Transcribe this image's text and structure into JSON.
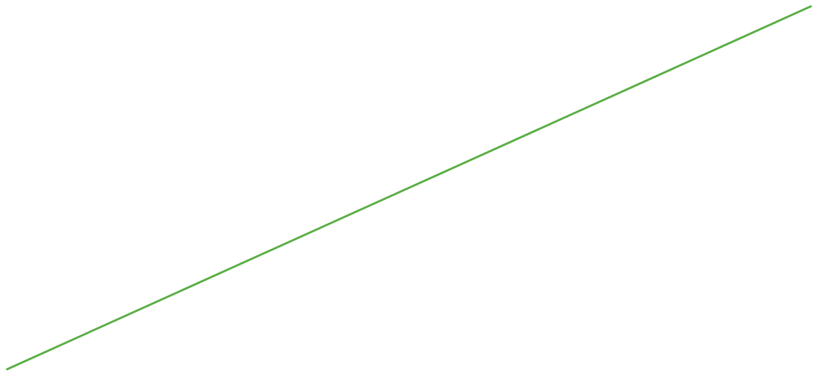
{
  "chart_data": {
    "type": "line",
    "title": "",
    "xlabel": "",
    "ylabel": "",
    "grid": false,
    "legend": "none",
    "series": [
      {
        "color": "#5aae45",
        "x": [
          0,
          1
        ],
        "values": [
          0,
          1
        ]
      }
    ],
    "xlim": [
      0,
      1
    ],
    "ylim": [
      0,
      1
    ]
  }
}
